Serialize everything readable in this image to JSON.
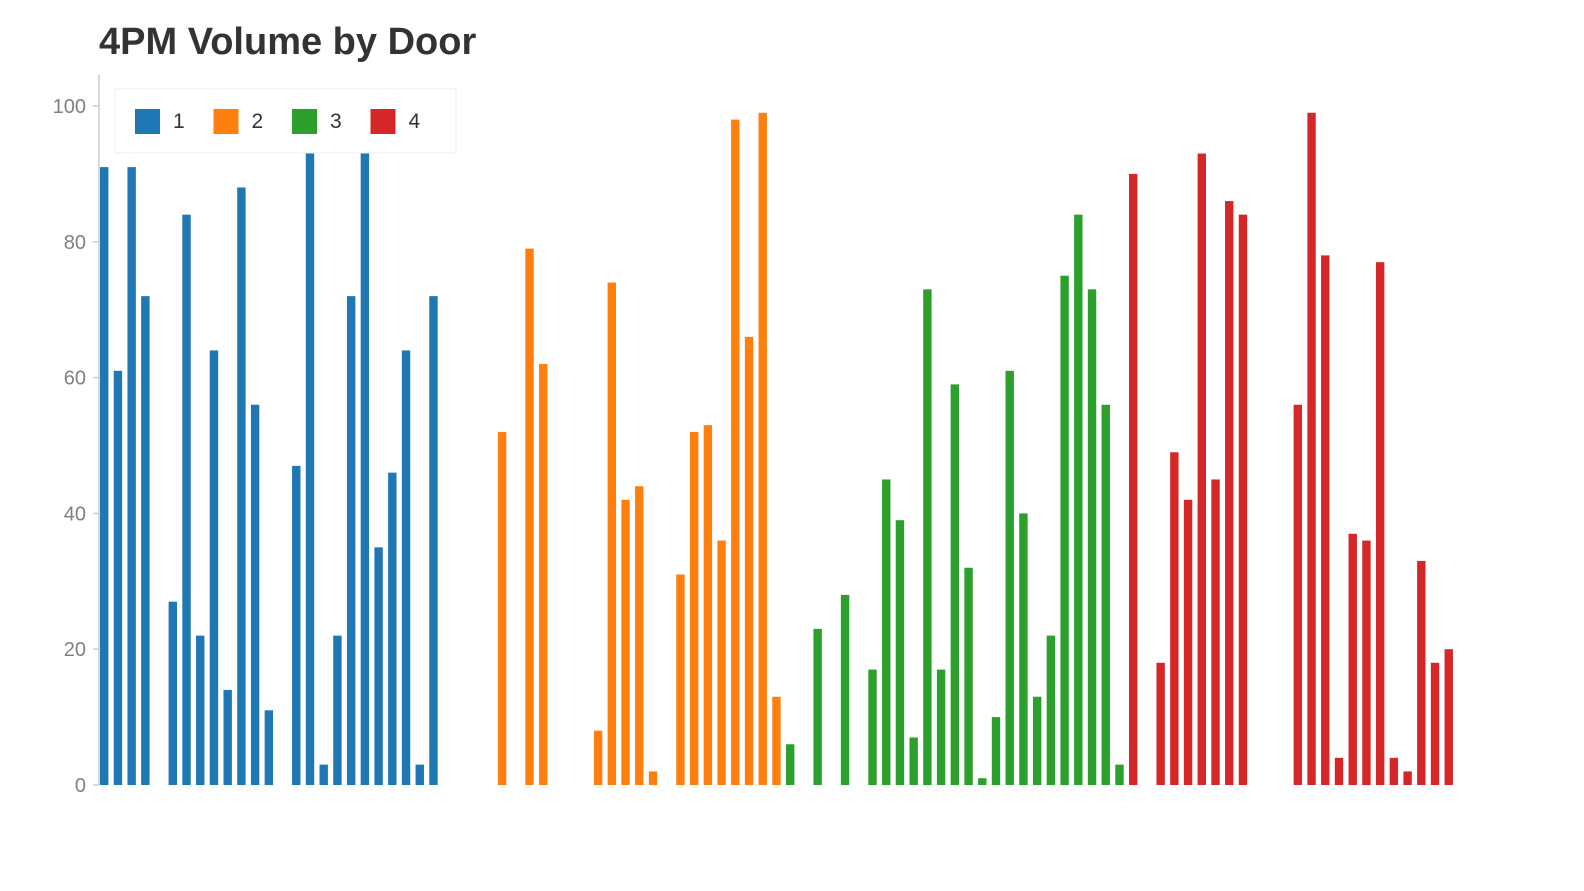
{
  "chart_data": {
    "type": "bar",
    "title": "4PM Volume by Door",
    "xlabel": "",
    "ylabel": "",
    "ylim": [
      0,
      100
    ],
    "yticks": [
      "0",
      "20",
      "40",
      "60",
      "80",
      "100"
    ],
    "grid": false,
    "legend_position": "top-left",
    "series": [
      {
        "name": "1",
        "color": "#1f77b4",
        "values": [
          91,
          61,
          91,
          72,
          0,
          27,
          84,
          22,
          64,
          14,
          88,
          56,
          11,
          0,
          47,
          98,
          3,
          22,
          72,
          98,
          35,
          46,
          64,
          3,
          72
        ]
      },
      {
        "name": "2",
        "color": "#ff7f0e",
        "values": [
          0,
          0,
          0,
          0,
          52,
          0,
          79,
          62,
          0,
          0,
          0,
          8,
          74,
          42,
          44,
          2,
          0,
          31,
          52,
          53,
          36,
          98,
          66,
          99,
          13
        ]
      },
      {
        "name": "3",
        "color": "#2ca02c",
        "values": [
          6,
          0,
          23,
          0,
          28,
          0,
          17,
          45,
          39,
          7,
          73,
          17,
          59,
          32,
          1,
          10,
          61,
          40,
          13,
          22,
          75,
          84,
          73,
          56,
          3
        ]
      },
      {
        "name": "4",
        "color": "#d62728",
        "values": [
          90,
          0,
          18,
          49,
          42,
          93,
          45,
          86,
          84,
          0,
          0,
          0,
          56,
          99,
          78,
          4,
          37,
          36,
          77,
          4,
          2,
          33,
          18,
          20,
          0
        ]
      }
    ]
  }
}
